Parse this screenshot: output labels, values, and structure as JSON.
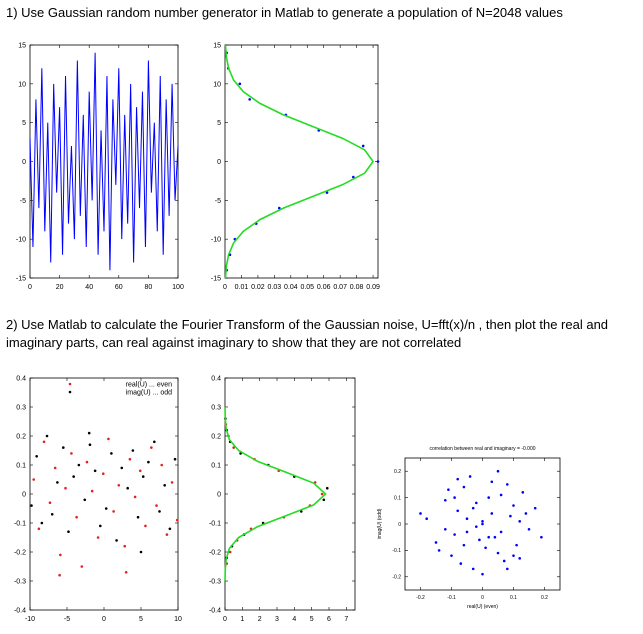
{
  "heading1": "1) Use Gaussian random number generator in Matlab to generate a population of N=2048 values",
  "heading2": "2) Use Matlab to calculate the Fourier Transform of the Gaussian noise, U=fft(x)/n , then plot the real and imaginary parts, can real against imaginary to show that they are not correlated",
  "chart_data": [
    {
      "type": "line",
      "xlim": [
        0,
        100
      ],
      "ylim": [
        -15,
        15
      ],
      "xticks": [
        0,
        20,
        40,
        60,
        80,
        100
      ],
      "yticks": [
        -15,
        -10,
        -5,
        0,
        5,
        10,
        15
      ],
      "series": [
        {
          "color": "#0000ff",
          "x": [
            0,
            2,
            4,
            6,
            8,
            10,
            12,
            14,
            16,
            18,
            20,
            22,
            24,
            26,
            28,
            30,
            32,
            34,
            36,
            38,
            40,
            42,
            44,
            46,
            48,
            50,
            52,
            54,
            56,
            58,
            60,
            62,
            64,
            66,
            68,
            70,
            72,
            74,
            76,
            78,
            80,
            82,
            84,
            86,
            88,
            90,
            92,
            94,
            96,
            98,
            100
          ],
          "values": [
            3,
            -11,
            8,
            -6,
            12,
            -9,
            5,
            -13,
            10,
            -4,
            7,
            -12,
            11,
            -8,
            2,
            -10,
            13,
            -7,
            6,
            -11,
            9,
            -5,
            14,
            -12,
            4,
            -9,
            11,
            -14,
            8,
            -3,
            12,
            -10,
            6,
            -8,
            10,
            -13,
            7,
            -6,
            9,
            -11,
            13,
            -4,
            5,
            -9,
            11,
            -12,
            8,
            -7,
            10,
            -5,
            2
          ]
        }
      ]
    },
    {
      "type": "scatter",
      "xlim": [
        0,
        0.093
      ],
      "ylim": [
        -15,
        15
      ],
      "xticks": [
        0,
        0.01,
        0.02,
        0.03,
        0.04,
        0.05,
        0.06,
        0.07,
        0.08,
        0.09
      ],
      "yticks": [
        -15,
        -10,
        -5,
        0,
        5,
        10,
        15
      ],
      "series": [
        {
          "color": "#0000ff",
          "x": [
            0.001,
            0.003,
            0.006,
            0.019,
            0.033,
            0.062,
            0.078,
            0.093,
            0.084,
            0.057,
            0.037,
            0.015,
            0.009,
            0.002,
            0.001
          ],
          "values": [
            -14,
            -12,
            -10,
            -8,
            -6,
            -4,
            -2,
            0,
            2,
            4,
            6,
            8,
            10,
            12,
            14
          ]
        },
        {
          "type": "line",
          "color": "#22dd22",
          "x": [
            0.0003,
            0.0008,
            0.0022,
            0.0052,
            0.0111,
            0.0211,
            0.0355,
            0.0533,
            0.0713,
            0.0849,
            0.09,
            0.0849,
            0.0713,
            0.0533,
            0.0355,
            0.0211,
            0.0111,
            0.0052,
            0.0022,
            0.0008,
            0.0003
          ],
          "values": [
            -15,
            -13.5,
            -12,
            -10.5,
            -9,
            -7.5,
            -6,
            -4.5,
            -3,
            -1.5,
            0,
            1.5,
            3,
            4.5,
            6,
            7.5,
            9,
            10.5,
            12,
            13.5,
            15
          ]
        }
      ]
    },
    {
      "type": "scatter",
      "xlim": [
        -10,
        10
      ],
      "ylim": [
        -0.4,
        0.4
      ],
      "xticks": [
        -10,
        -5,
        0,
        5,
        10
      ],
      "yticks": [
        -0.4,
        -0.3,
        -0.2,
        -0.1,
        0,
        0.1,
        0.2,
        0.3,
        0.4
      ],
      "series": [
        {
          "name": "real(U) ... even",
          "color": "#e8201c",
          "x": [
            -9.5,
            -8.8,
            -8.1,
            -7.3,
            -6.6,
            -5.9,
            -5.2,
            -4.4,
            -3.7,
            -3.0,
            -2.3,
            -1.6,
            -0.8,
            -0.1,
            0.6,
            1.3,
            2.0,
            2.8,
            3.5,
            4.2,
            4.9,
            5.6,
            6.4,
            7.1,
            7.8,
            8.5,
            9.2,
            9.9,
            -6.0,
            3.0
          ],
          "values": [
            0.05,
            -0.12,
            0.18,
            -0.03,
            0.09,
            -0.21,
            0.02,
            0.14,
            -0.08,
            -0.25,
            0.11,
            0.01,
            -0.15,
            0.07,
            0.19,
            -0.06,
            0.03,
            -0.18,
            0.12,
            -0.01,
            0.08,
            -0.11,
            0.16,
            -0.04,
            0.1,
            -0.14,
            0.04,
            -0.09,
            -0.28,
            -0.27
          ]
        },
        {
          "name": "imag(U) ... odd",
          "color": "#000000",
          "x": [
            -9.8,
            -9.1,
            -8.4,
            -7.7,
            -7.0,
            -6.3,
            -5.5,
            -4.8,
            -4.1,
            -3.4,
            -2.6,
            -1.9,
            -1.2,
            -0.5,
            0.3,
            1.0,
            1.7,
            2.4,
            3.2,
            3.9,
            4.6,
            5.3,
            6.0,
            6.8,
            7.5,
            8.2,
            8.9,
            9.6,
            -2.0,
            5.0
          ],
          "values": [
            -0.04,
            0.13,
            -0.1,
            0.2,
            -0.07,
            0.04,
            0.16,
            -0.13,
            0.06,
            0.1,
            -0.02,
            0.17,
            0.08,
            -0.11,
            -0.05,
            0.14,
            -0.16,
            0.09,
            0.02,
            0.15,
            -0.08,
            0.06,
            0.11,
            0.18,
            -0.06,
            0.03,
            -0.12,
            0.12,
            0.21,
            -0.2
          ]
        }
      ]
    },
    {
      "type": "scatter",
      "xlim": [
        0,
        7.5
      ],
      "ylim": [
        -0.4,
        0.4
      ],
      "xticks": [
        0,
        1,
        2,
        3,
        4,
        5,
        6,
        7
      ],
      "yticks": [
        -0.4,
        -0.3,
        -0.2,
        -0.1,
        0,
        0.1,
        0.2,
        0.3,
        0.4
      ],
      "series": [
        {
          "color": "#e8201c",
          "x": [
            0.1,
            0.3,
            0.7,
            1.5,
            3.4,
            4.9,
            5.6,
            5.2,
            3.1,
            1.7,
            0.5,
            0.2,
            0.05
          ],
          "values": [
            -0.24,
            -0.2,
            -0.16,
            -0.12,
            -0.08,
            -0.04,
            0,
            0.04,
            0.08,
            0.12,
            0.16,
            0.2,
            0.24
          ]
        },
        {
          "color": "#000000",
          "x": [
            0.1,
            0.4,
            1.1,
            2.2,
            4.4,
            5.7,
            5.9,
            4.0,
            2.5,
            0.9,
            0.3,
            0.1,
            0.02
          ],
          "values": [
            -0.22,
            -0.18,
            -0.14,
            -0.1,
            -0.06,
            -0.02,
            0.02,
            0.06,
            0.1,
            0.14,
            0.18,
            0.22,
            0.26
          ]
        },
        {
          "type": "line",
          "color": "#22dd22",
          "x": [
            0.002,
            0.013,
            0.064,
            0.255,
            0.785,
            1.883,
            3.518,
            5.119,
            5.8,
            5.119,
            3.518,
            1.883,
            0.785,
            0.255,
            0.064,
            0.013,
            0.002
          ],
          "values": [
            -0.3,
            -0.2625,
            -0.225,
            -0.1875,
            -0.15,
            -0.1125,
            -0.075,
            -0.0375,
            0,
            0.0375,
            0.075,
            0.1125,
            0.15,
            0.1875,
            0.225,
            0.2625,
            0.3
          ]
        }
      ]
    },
    {
      "type": "scatter",
      "title": "correlation between real and imaginary = -0.000",
      "xlabel": "real(U) (even)",
      "ylabel": "imag(U) (odd)",
      "xlim": [
        -0.25,
        0.25
      ],
      "ylim": [
        -0.25,
        0.25
      ],
      "xticks": [
        -0.2,
        -0.1,
        0,
        0.1,
        0.2
      ],
      "yticks": [
        -0.2,
        -0.1,
        0,
        0.1,
        0.2
      ],
      "series": [
        {
          "color": "#0000ff",
          "x": [
            -0.18,
            -0.15,
            -0.12,
            -0.1,
            -0.08,
            -0.06,
            -0.05,
            -0.03,
            -0.02,
            0,
            0.01,
            0.03,
            0.04,
            0.06,
            0.07,
            0.09,
            0.11,
            0.13,
            0.15,
            0.17,
            -0.14,
            -0.11,
            -0.09,
            -0.07,
            -0.04,
            -0.01,
            0.02,
            0.05,
            0.08,
            0.1,
            0.12,
            0.14,
            -0.05,
            0,
            0.05,
            -0.02,
            0.03,
            -0.08,
            0.08,
            0.19,
            -0.2,
            0.0,
            -0.12,
            0.12,
            -0.03,
            0.06,
            -0.09,
            0.1,
            0.02,
            -0.06
          ],
          "values": [
            0.02,
            -0.07,
            0.09,
            -0.12,
            0.05,
            0.14,
            -0.03,
            -0.17,
            0.08,
            0.01,
            -0.09,
            0.16,
            -0.05,
            0.11,
            -0.14,
            0.03,
            -0.08,
            0.12,
            -0.02,
            0.06,
            -0.1,
            0.13,
            -0.04,
            -0.15,
            0.18,
            -0.06,
            0.1,
            -0.11,
            0.15,
            0.07,
            -0.13,
            0.04,
            0.02,
            -0.19,
            0.2,
            -0.01,
            0.04,
            0.17,
            -0.17,
            -0.05,
            0.04,
            0.0,
            -0.02,
            0.01,
            0.06,
            -0.03,
            0.1,
            -0.12,
            -0.05,
            -0.08
          ]
        }
      ]
    }
  ]
}
